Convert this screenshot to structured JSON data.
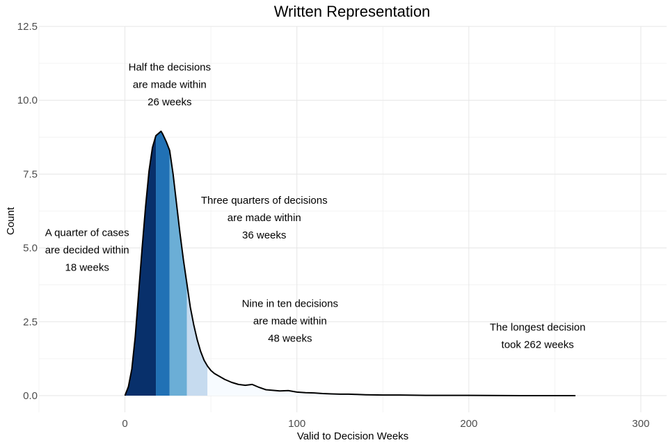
{
  "chart_data": {
    "type": "area",
    "title": "Written Representation",
    "xlabel": "Valid to Decision Weeks",
    "ylabel": "Count",
    "xlim": [
      -50,
      315
    ],
    "ylim": [
      0,
      12.5
    ],
    "x_ticks": [
      {
        "value": 0,
        "label": "0"
      },
      {
        "value": 100,
        "label": "100"
      },
      {
        "value": 200,
        "label": "200"
      },
      {
        "value": 300,
        "label": "300"
      }
    ],
    "y_ticks": [
      {
        "value": 0,
        "label": "0.0"
      },
      {
        "value": 2.5,
        "label": "2.5"
      },
      {
        "value": 5,
        "label": "5.0"
      },
      {
        "value": 7.5,
        "label": "7.5"
      },
      {
        "value": 10,
        "label": "10.0"
      },
      {
        "value": 12.5,
        "label": "12.5"
      }
    ],
    "grid": true,
    "colors": [
      "#08306b",
      "#2171b5",
      "#6baed6",
      "#c6dbef",
      "#f7fbff"
    ],
    "quantile_bands": [
      {
        "from": 0,
        "to": 18,
        "color": "#08306b"
      },
      {
        "from": 18,
        "to": 26,
        "color": "#2171b5"
      },
      {
        "from": 26,
        "to": 36,
        "color": "#6baed6"
      },
      {
        "from": 36,
        "to": 48,
        "color": "#c6dbef"
      },
      {
        "from": 48,
        "to": 262,
        "color": "#f7fbff"
      }
    ],
    "density": {
      "x": [
        0,
        2,
        4,
        6,
        8,
        10,
        12,
        14,
        16,
        18,
        20,
        21,
        22,
        24,
        26,
        28,
        30,
        32,
        34,
        36,
        38,
        40,
        42,
        44,
        46,
        48,
        50,
        52,
        55,
        58,
        62,
        66,
        70,
        74,
        78,
        82,
        86,
        90,
        95,
        100,
        105,
        110,
        115,
        120,
        125,
        130,
        135,
        140,
        150,
        160,
        175,
        200,
        230,
        262
      ],
      "y": [
        0,
        0.3,
        0.9,
        2.0,
        3.5,
        5.0,
        6.4,
        7.6,
        8.4,
        8.8,
        8.9,
        8.95,
        8.85,
        8.6,
        8.3,
        7.5,
        6.5,
        5.5,
        4.6,
        3.8,
        3.0,
        2.4,
        1.9,
        1.5,
        1.2,
        1.0,
        0.85,
        0.75,
        0.65,
        0.55,
        0.45,
        0.38,
        0.35,
        0.38,
        0.28,
        0.2,
        0.18,
        0.16,
        0.17,
        0.12,
        0.1,
        0.09,
        0.07,
        0.06,
        0.05,
        0.05,
        0.04,
        0.03,
        0.02,
        0.02,
        0.01,
        0.01,
        0.0,
        0.0
      ]
    },
    "annotations": [
      {
        "x": -22,
        "y": 5.4,
        "lines": [
          "A quarter of cases",
          "are decided within",
          "18 weeks"
        ]
      },
      {
        "x": 26,
        "y": 11.0,
        "lines": [
          "Half the decisions",
          "are made within",
          "26 weeks"
        ]
      },
      {
        "x": 81,
        "y": 6.5,
        "lines": [
          "Three quarters of decisions",
          "are made within",
          "36 weeks"
        ]
      },
      {
        "x": 96,
        "y": 3.0,
        "lines": [
          "Nine in ten decisions",
          "are made within",
          "48 weeks"
        ]
      },
      {
        "x": 240,
        "y": 2.2,
        "lines": [
          "The longest decision",
          "took 262 weeks"
        ]
      }
    ]
  }
}
